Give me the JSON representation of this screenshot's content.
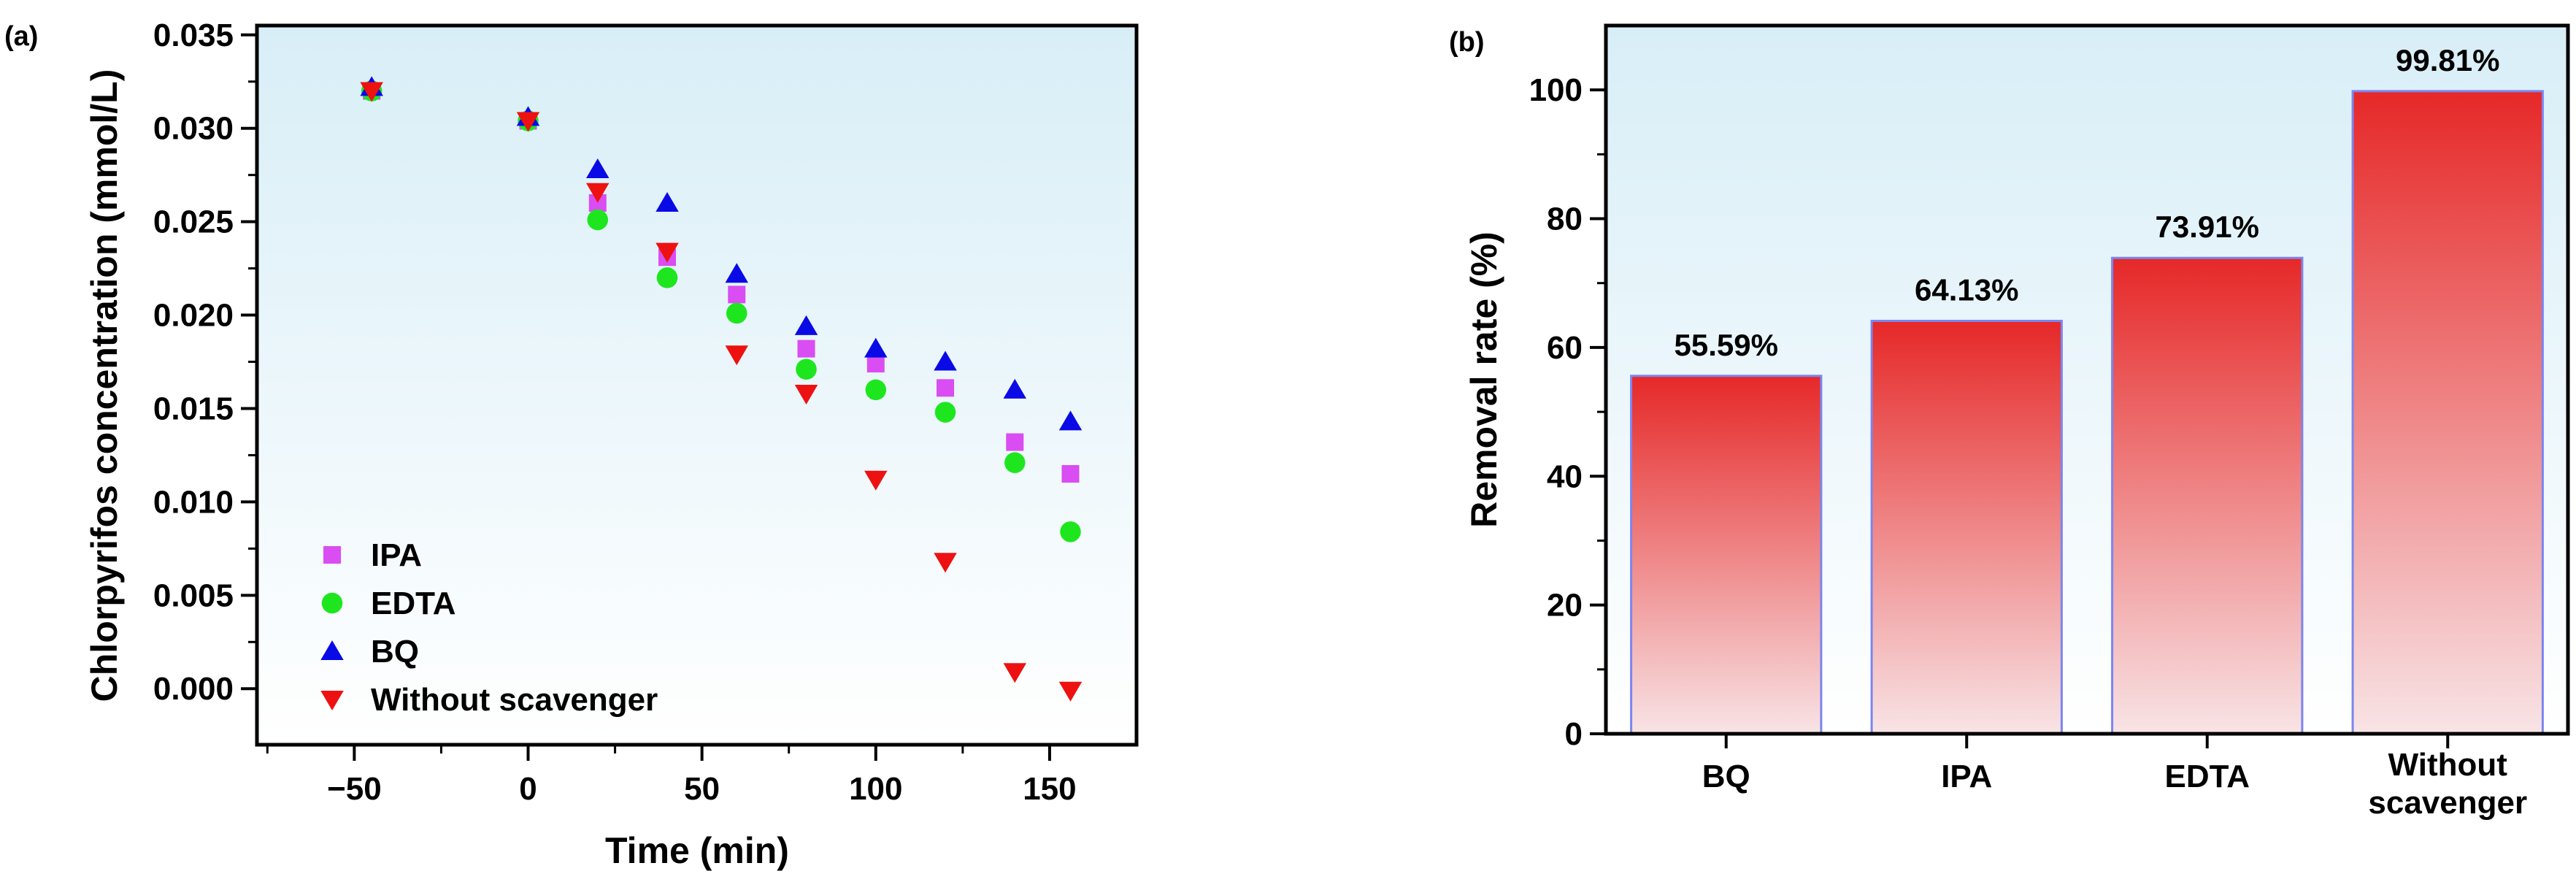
{
  "chart_data": [
    {
      "type": "scatter",
      "panel_label": "(a)",
      "xlabel": "Time (min)",
      "ylabel": "Chlorpyrifos concentration (mmol/L)",
      "xlim": [
        -78,
        175
      ],
      "ylim": [
        -0.003,
        0.0355
      ],
      "x_ticks": [
        -50,
        0,
        50,
        100,
        150
      ],
      "y_ticks": [
        0.0,
        0.005,
        0.01,
        0.015,
        0.02,
        0.025,
        0.03,
        0.035
      ],
      "x_tick_labels": [
        "−50",
        "0",
        "50",
        "100",
        "150"
      ],
      "y_tick_labels": [
        "0.000",
        "0.005",
        "0.010",
        "0.015",
        "0.020",
        "0.025",
        "0.030",
        "0.035"
      ],
      "legend_position": "bottom-left",
      "series": [
        {
          "name": "IPA",
          "marker": "square",
          "color": "#d94df2",
          "x": [
            -45,
            0,
            20,
            40,
            60,
            80,
            100,
            120,
            140,
            156
          ],
          "y": [
            0.032,
            0.0304,
            0.026,
            0.0231,
            0.0211,
            0.0182,
            0.0174,
            0.0161,
            0.0132,
            0.0115
          ]
        },
        {
          "name": "EDTA",
          "marker": "circle",
          "color": "#1ee61e",
          "x": [
            -45,
            0,
            20,
            40,
            60,
            80,
            100,
            120,
            140,
            156
          ],
          "y": [
            0.032,
            0.0304,
            0.0251,
            0.022,
            0.0201,
            0.0171,
            0.016,
            0.0148,
            0.0121,
            0.0084
          ]
        },
        {
          "name": "BQ",
          "marker": "triangle-up",
          "color": "#0a0ae6",
          "x": [
            -45,
            0,
            20,
            40,
            60,
            80,
            100,
            120,
            140,
            156
          ],
          "y": [
            0.0322,
            0.0306,
            0.0278,
            0.026,
            0.0222,
            0.0194,
            0.0182,
            0.0175,
            0.016,
            0.0143
          ]
        },
        {
          "name": "Without scavenger",
          "marker": "triangle-down",
          "color": "#ee1111",
          "x": [
            -45,
            0,
            20,
            40,
            60,
            80,
            100,
            120,
            140,
            156
          ],
          "y": [
            0.032,
            0.0304,
            0.0266,
            0.0234,
            0.0179,
            0.0158,
            0.0112,
            0.0068,
            0.0009,
            -0.0001
          ]
        }
      ]
    },
    {
      "type": "bar",
      "panel_label": "(b)",
      "xlabel": "",
      "ylabel": "Removal rate (%)",
      "ylim": [
        0,
        110
      ],
      "y_ticks": [
        0,
        20,
        40,
        60,
        80,
        100
      ],
      "y_tick_labels": [
        "0",
        "20",
        "40",
        "60",
        "80",
        "100"
      ],
      "categories": [
        [
          "BQ"
        ],
        [
          "IPA"
        ],
        [
          "EDTA"
        ],
        [
          "Without",
          "scavenger"
        ]
      ],
      "values": [
        55.59,
        64.13,
        73.91,
        99.81
      ],
      "value_labels": [
        "55.59%",
        "64.13%",
        "73.91%",
        "99.81%"
      ],
      "colors": {
        "bar_top": "#e62828",
        "bar_bottom": "#f8e4e6",
        "bar_edge": "#7b85f0"
      }
    }
  ],
  "colors": {
    "plot_bg_top": "#d8eef7",
    "plot_bg_bottom": "#ffffff",
    "axis": "#000000"
  }
}
